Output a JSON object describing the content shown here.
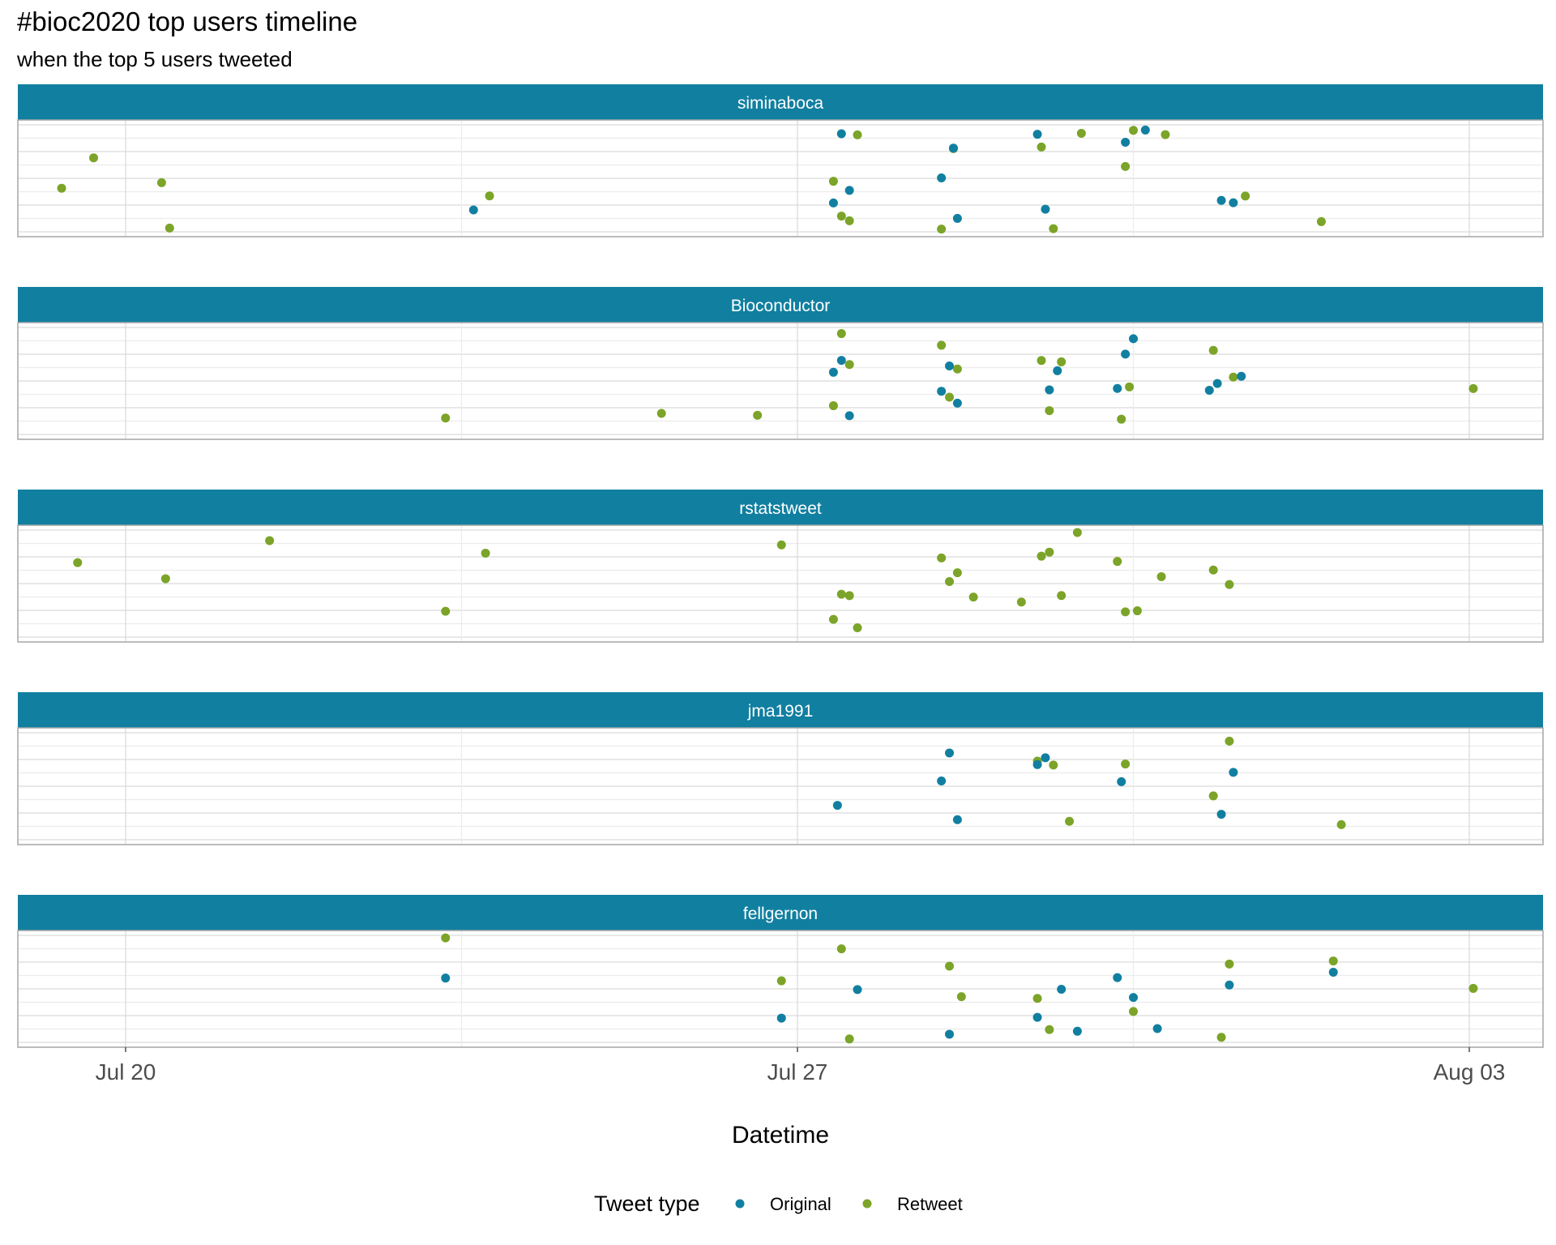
{
  "colors": {
    "original": "#117FA0",
    "retweet": "#7BA428",
    "strip_bg": "#117FA0",
    "grid_major": "#d9d9d9",
    "grid_minor": "#ececec",
    "panel_border": "#a6a6a6"
  },
  "chart_data": {
    "type": "scatter",
    "title": "#bioc2020 top users timeline",
    "subtitle": "when the top 5 users tweeted",
    "xlabel": "Datetime",
    "ylabel": "",
    "x_unit": "days",
    "xlim": [
      "2020-07-18 22:00",
      "2020-08-03 07:00"
    ],
    "x_ticks": [
      {
        "value": "2020-07-20",
        "label": "Jul 20"
      },
      {
        "value": "2020-07-27",
        "label": "Jul 27"
      },
      {
        "value": "2020-08-03",
        "label": "Aug 03"
      }
    ],
    "y_scale": "random jitter, no axis labels",
    "grid": true,
    "legend": {
      "title": "Tweet type",
      "position": "bottom",
      "entries": [
        {
          "label": "Original",
          "color": "#117FA0"
        },
        {
          "label": "Retweet",
          "color": "#7BA428"
        }
      ]
    },
    "facets": [
      {
        "label": "siminaboca",
        "original_x": [
          "2020-07-23 15:00",
          "2020-07-27 09:00",
          "2020-07-27 11:00",
          "2020-07-27 13:00",
          "2020-07-28 12:00",
          "2020-07-28 15:00",
          "2020-07-28 16:00",
          "2020-07-29 12:00",
          "2020-07-29 14:00",
          "2020-07-30 10:00",
          "2020-07-30 15:00",
          "2020-07-31 10:00",
          "2020-07-31 13:00"
        ],
        "retweet_x": [
          "2020-07-19 08:00",
          "2020-07-19 16:00",
          "2020-07-20 09:00",
          "2020-07-20 11:00",
          "2020-07-23 19:00",
          "2020-07-27 09:00",
          "2020-07-27 11:00",
          "2020-07-27 13:00",
          "2020-07-27 15:00",
          "2020-07-28 12:00",
          "2020-07-28 15:00",
          "2020-07-29 13:00",
          "2020-07-29 16:00",
          "2020-07-29 23:00",
          "2020-07-30 10:00",
          "2020-07-30 12:00",
          "2020-07-30 20:00",
          "2020-07-31 16:00",
          "2020-08-01 11:00"
        ]
      },
      {
        "label": "Bioconductor",
        "original_x": [
          "2020-07-27 09:00",
          "2020-07-27 11:00",
          "2020-07-27 13:00",
          "2020-07-28 12:00",
          "2020-07-28 14:00",
          "2020-07-28 16:00",
          "2020-07-29 15:00",
          "2020-07-29 17:00",
          "2020-07-30 08:00",
          "2020-07-30 10:00",
          "2020-07-30 12:00",
          "2020-07-31 07:00",
          "2020-07-31 09:00",
          "2020-07-31 15:00"
        ],
        "retweet_x": [
          "2020-07-23 08:00",
          "2020-07-25 14:00",
          "2020-07-26 14:00",
          "2020-07-27 09:00",
          "2020-07-27 11:00",
          "2020-07-27 13:00",
          "2020-07-28 12:00",
          "2020-07-28 14:00",
          "2020-07-28 16:00",
          "2020-07-29 13:00",
          "2020-07-29 15:00",
          "2020-07-29 18:00",
          "2020-07-30 09:00",
          "2020-07-30 11:00",
          "2020-07-31 08:00",
          "2020-07-31 13:00",
          "2020-08-03 01:00"
        ]
      },
      {
        "label": "rstatstweet",
        "original_x": [],
        "retweet_x": [
          "2020-07-19 12:00",
          "2020-07-20 10:00",
          "2020-07-21 12:00",
          "2020-07-23 08:00",
          "2020-07-23 18:00",
          "2020-07-26 20:00",
          "2020-07-27 09:00",
          "2020-07-27 11:00",
          "2020-07-27 13:00",
          "2020-07-27 15:00",
          "2020-07-28 12:00",
          "2020-07-28 14:00",
          "2020-07-28 16:00",
          "2020-07-28 20:00",
          "2020-07-29 08:00",
          "2020-07-29 13:00",
          "2020-07-29 15:00",
          "2020-07-29 18:00",
          "2020-07-29 22:00",
          "2020-07-30 08:00",
          "2020-07-30 10:00",
          "2020-07-30 13:00",
          "2020-07-30 19:00",
          "2020-07-31 08:00",
          "2020-07-31 12:00"
        ]
      },
      {
        "label": "jma1991",
        "original_x": [
          "2020-07-27 10:00",
          "2020-07-28 12:00",
          "2020-07-28 14:00",
          "2020-07-28 16:00",
          "2020-07-29 12:00",
          "2020-07-29 14:00",
          "2020-07-30 09:00",
          "2020-07-31 10:00",
          "2020-07-31 13:00"
        ],
        "retweet_x": [
          "2020-07-29 12:00",
          "2020-07-29 16:00",
          "2020-07-29 20:00",
          "2020-07-30 10:00",
          "2020-07-31 08:00",
          "2020-07-31 12:00",
          "2020-08-01 16:00"
        ]
      },
      {
        "label": "fellgernon",
        "original_x": [
          "2020-07-23 08:00",
          "2020-07-26 20:00",
          "2020-07-27 15:00",
          "2020-07-28 14:00",
          "2020-07-29 12:00",
          "2020-07-29 18:00",
          "2020-07-29 22:00",
          "2020-07-30 08:00",
          "2020-07-30 12:00",
          "2020-07-30 18:00",
          "2020-07-31 12:00",
          "2020-08-01 14:00"
        ],
        "retweet_x": [
          "2020-07-23 08:00",
          "2020-07-26 20:00",
          "2020-07-27 11:00",
          "2020-07-27 13:00",
          "2020-07-28 14:00",
          "2020-07-28 17:00",
          "2020-07-29 12:00",
          "2020-07-29 15:00",
          "2020-07-30 12:00",
          "2020-07-31 10:00",
          "2020-07-31 12:00",
          "2020-08-01 14:00",
          "2020-08-03 01:00"
        ]
      }
    ]
  }
}
